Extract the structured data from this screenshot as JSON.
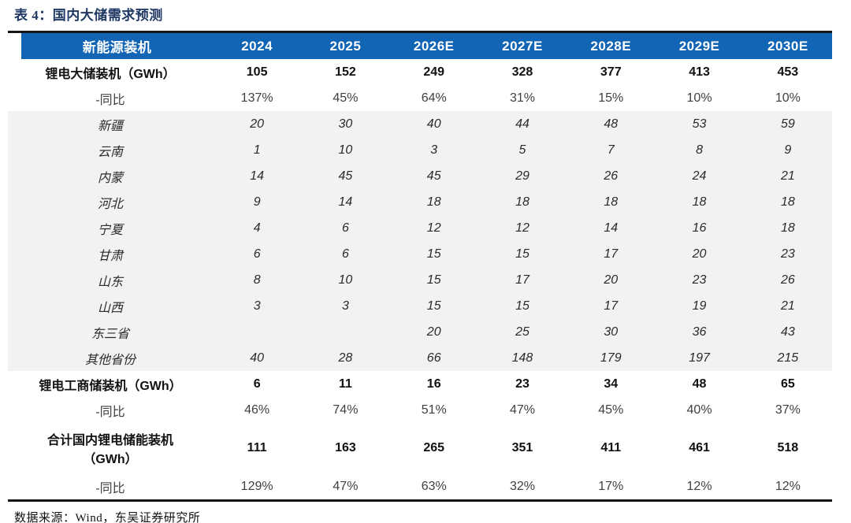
{
  "title": "表 4：国内大储需求预测",
  "source": "数据来源：Wind，东吴证券研究所",
  "colors": {
    "header_bg": "#1165B4",
    "header_text": "#FFFFFF",
    "title_text": "#1F3864",
    "province_band_bg": "#F2F2F2",
    "table_border": "#161616",
    "yoy_text": "#3F3F3F"
  },
  "chart_data": {
    "type": "table",
    "columns": [
      "新能源装机",
      "2024",
      "2025",
      "2026E",
      "2027E",
      "2028E",
      "2029E",
      "2030E"
    ],
    "rows": [
      {
        "label": "锂电大储装机（GWh）",
        "style": "main",
        "tall": false,
        "values": [
          "105",
          "152",
          "249",
          "328",
          "377",
          "413",
          "453"
        ]
      },
      {
        "label": "-同比",
        "style": "yoy",
        "tall": false,
        "values": [
          "137%",
          "45%",
          "64%",
          "31%",
          "15%",
          "10%",
          "10%"
        ]
      },
      {
        "label": "新疆",
        "style": "province",
        "tall": false,
        "values": [
          "20",
          "30",
          "40",
          "44",
          "48",
          "53",
          "59"
        ]
      },
      {
        "label": "云南",
        "style": "province",
        "tall": false,
        "values": [
          "1",
          "10",
          "3",
          "5",
          "7",
          "8",
          "9"
        ]
      },
      {
        "label": "内蒙",
        "style": "province",
        "tall": false,
        "values": [
          "14",
          "45",
          "45",
          "29",
          "26",
          "24",
          "21"
        ]
      },
      {
        "label": "河北",
        "style": "province",
        "tall": false,
        "values": [
          "9",
          "14",
          "18",
          "18",
          "18",
          "18",
          "18"
        ]
      },
      {
        "label": "宁夏",
        "style": "province",
        "tall": false,
        "values": [
          "4",
          "6",
          "12",
          "12",
          "14",
          "16",
          "18"
        ]
      },
      {
        "label": "甘肃",
        "style": "province",
        "tall": false,
        "values": [
          "6",
          "6",
          "15",
          "15",
          "17",
          "20",
          "23"
        ]
      },
      {
        "label": "山东",
        "style": "province",
        "tall": false,
        "values": [
          "8",
          "10",
          "15",
          "17",
          "20",
          "23",
          "26"
        ]
      },
      {
        "label": "山西",
        "style": "province",
        "tall": false,
        "values": [
          "3",
          "3",
          "15",
          "15",
          "17",
          "19",
          "21"
        ]
      },
      {
        "label": "东三省",
        "style": "province",
        "tall": false,
        "values": [
          "",
          "",
          "20",
          "25",
          "30",
          "36",
          "43"
        ]
      },
      {
        "label": "其他省份",
        "style": "province",
        "tall": false,
        "values": [
          "40",
          "28",
          "66",
          "148",
          "179",
          "197",
          "215"
        ]
      },
      {
        "label": "锂电工商储装机（GWh）",
        "style": "main",
        "tall": false,
        "values": [
          "6",
          "11",
          "16",
          "23",
          "34",
          "48",
          "65"
        ]
      },
      {
        "label": "-同比",
        "style": "yoy",
        "tall": false,
        "values": [
          "46%",
          "74%",
          "51%",
          "47%",
          "45%",
          "40%",
          "37%"
        ]
      },
      {
        "label": "合计国内锂电储能装机\n（GWh）",
        "style": "main",
        "tall": true,
        "values": [
          "111",
          "163",
          "265",
          "351",
          "411",
          "461",
          "518"
        ]
      },
      {
        "label": "-同比",
        "style": "yoy",
        "tall": false,
        "values": [
          "129%",
          "47%",
          "63%",
          "32%",
          "17%",
          "12%",
          "12%"
        ]
      }
    ]
  }
}
